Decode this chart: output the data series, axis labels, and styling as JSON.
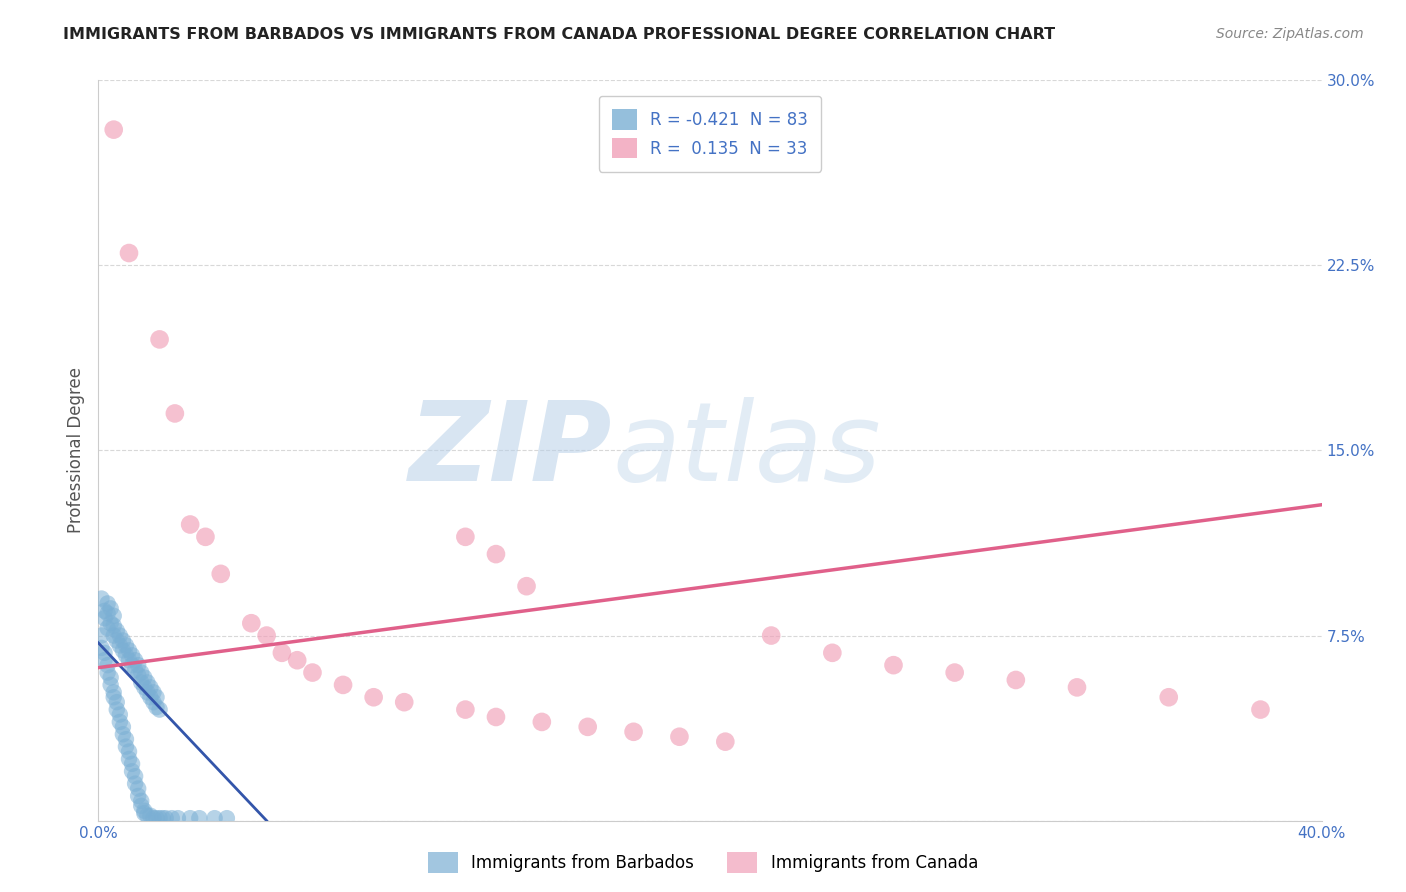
{
  "title": "IMMIGRANTS FROM BARBADOS VS IMMIGRANTS FROM CANADA PROFESSIONAL DEGREE CORRELATION CHART",
  "source_text": "Source: ZipAtlas.com",
  "ylabel": "Professional Degree",
  "xlim": [
    0.0,
    0.4
  ],
  "ylim": [
    0.0,
    0.3
  ],
  "xticks": [
    0.0,
    0.1,
    0.2,
    0.3,
    0.4
  ],
  "xticklabels": [
    "0.0%",
    "",
    "",
    "",
    "40.0%"
  ],
  "ytick_positions": [
    0.0,
    0.075,
    0.15,
    0.225,
    0.3
  ],
  "ytick_labels": [
    "",
    "7.5%",
    "15.0%",
    "22.5%",
    "30.0%"
  ],
  "grid_color": "#c8c8c8",
  "background_color": "#ffffff",
  "watermark_zip": "ZIP",
  "watermark_atlas": "atlas",
  "watermark_color_zip": "#b8cfe8",
  "watermark_color_atlas": "#b8cfe8",
  "series": [
    {
      "name": "Immigrants from Barbados",
      "color": "#7bafd4",
      "marker_color": "#7bafd4",
      "R": -0.421,
      "N": 83,
      "trend_color": "#3355aa",
      "trend_x0": 0.0,
      "trend_x1": 0.055,
      "trend_y0": 0.072,
      "trend_y1": 0.0
    },
    {
      "name": "Immigrants from Canada",
      "color": "#f0a0b8",
      "marker_color": "#f0a0b8",
      "R": 0.135,
      "N": 33,
      "trend_color": "#e0608a",
      "trend_x0": 0.0,
      "trend_x1": 0.4,
      "trend_y0": 0.062,
      "trend_y1": 0.128
    }
  ],
  "barbados_x": [
    0.001,
    0.002,
    0.002,
    0.003,
    0.003,
    0.003,
    0.004,
    0.004,
    0.005,
    0.005,
    0.005,
    0.006,
    0.006,
    0.007,
    0.007,
    0.008,
    0.008,
    0.009,
    0.009,
    0.01,
    0.01,
    0.011,
    0.011,
    0.012,
    0.012,
    0.013,
    0.013,
    0.014,
    0.014,
    0.015,
    0.015,
    0.016,
    0.016,
    0.017,
    0.017,
    0.018,
    0.018,
    0.019,
    0.019,
    0.02,
    0.001,
    0.001,
    0.002,
    0.002,
    0.003,
    0.003,
    0.004,
    0.004,
    0.005,
    0.005,
    0.006,
    0.006,
    0.007,
    0.007,
    0.008,
    0.008,
    0.009,
    0.009,
    0.01,
    0.01,
    0.011,
    0.011,
    0.012,
    0.012,
    0.013,
    0.013,
    0.014,
    0.014,
    0.015,
    0.015,
    0.016,
    0.017,
    0.018,
    0.019,
    0.02,
    0.021,
    0.022,
    0.024,
    0.026,
    0.03,
    0.033,
    0.038,
    0.042
  ],
  "barbados_y": [
    0.09,
    0.085,
    0.082,
    0.088,
    0.084,
    0.078,
    0.086,
    0.08,
    0.083,
    0.079,
    0.075,
    0.077,
    0.073,
    0.075,
    0.071,
    0.073,
    0.069,
    0.071,
    0.067,
    0.069,
    0.065,
    0.067,
    0.063,
    0.065,
    0.061,
    0.063,
    0.059,
    0.06,
    0.056,
    0.058,
    0.054,
    0.056,
    0.052,
    0.054,
    0.05,
    0.052,
    0.048,
    0.05,
    0.046,
    0.045,
    0.075,
    0.07,
    0.068,
    0.065,
    0.063,
    0.06,
    0.058,
    0.055,
    0.052,
    0.05,
    0.048,
    0.045,
    0.043,
    0.04,
    0.038,
    0.035,
    0.033,
    0.03,
    0.028,
    0.025,
    0.023,
    0.02,
    0.018,
    0.015,
    0.013,
    0.01,
    0.008,
    0.006,
    0.004,
    0.003,
    0.002,
    0.002,
    0.001,
    0.001,
    0.001,
    0.001,
    0.001,
    0.001,
    0.001,
    0.001,
    0.001,
    0.001,
    0.001
  ],
  "canada_x": [
    0.005,
    0.01,
    0.02,
    0.025,
    0.03,
    0.035,
    0.04,
    0.05,
    0.055,
    0.06,
    0.065,
    0.07,
    0.08,
    0.09,
    0.1,
    0.12,
    0.13,
    0.145,
    0.16,
    0.175,
    0.19,
    0.205,
    0.22,
    0.24,
    0.26,
    0.28,
    0.3,
    0.32,
    0.35,
    0.38,
    0.12,
    0.13,
    0.14
  ],
  "canada_y": [
    0.28,
    0.23,
    0.195,
    0.165,
    0.12,
    0.115,
    0.1,
    0.08,
    0.075,
    0.068,
    0.065,
    0.06,
    0.055,
    0.05,
    0.048,
    0.045,
    0.042,
    0.04,
    0.038,
    0.036,
    0.034,
    0.032,
    0.075,
    0.068,
    0.063,
    0.06,
    0.057,
    0.054,
    0.05,
    0.045,
    0.115,
    0.108,
    0.095
  ]
}
